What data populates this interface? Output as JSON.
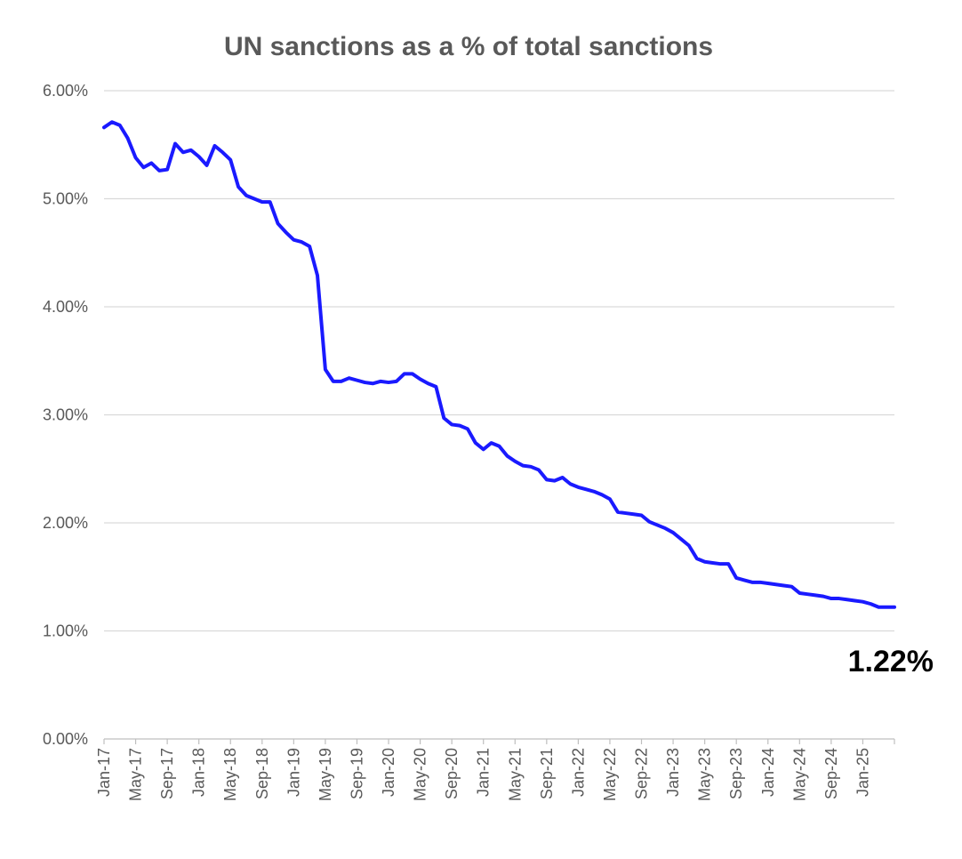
{
  "chart_data": {
    "type": "line",
    "title": "UN sanctions as a % of total sanctions",
    "xlabel": "",
    "ylabel": "",
    "ylim": [
      0,
      6
    ],
    "y_ticks": [
      {
        "value": 0,
        "label": "0.00%"
      },
      {
        "value": 1,
        "label": "1.00%"
      },
      {
        "value": 2,
        "label": "2.00%"
      },
      {
        "value": 3,
        "label": "3.00%"
      },
      {
        "value": 4,
        "label": "4.00%"
      },
      {
        "value": 5,
        "label": "5.00%"
      },
      {
        "value": 6,
        "label": "6.00%"
      }
    ],
    "x_ticks": [
      {
        "index": 0,
        "label": "Jan-17"
      },
      {
        "index": 4,
        "label": "May-17"
      },
      {
        "index": 8,
        "label": "Sep-17"
      },
      {
        "index": 12,
        "label": "Jan-18"
      },
      {
        "index": 16,
        "label": "May-18"
      },
      {
        "index": 20,
        "label": "Sep-18"
      },
      {
        "index": 24,
        "label": "Jan-19"
      },
      {
        "index": 28,
        "label": "May-19"
      },
      {
        "index": 32,
        "label": "Sep-19"
      },
      {
        "index": 36,
        "label": "Jan-20"
      },
      {
        "index": 40,
        "label": "May-20"
      },
      {
        "index": 44,
        "label": "Sep-20"
      },
      {
        "index": 48,
        "label": "Jan-21"
      },
      {
        "index": 52,
        "label": "May-21"
      },
      {
        "index": 56,
        "label": "Sep-21"
      },
      {
        "index": 60,
        "label": "Jan-22"
      },
      {
        "index": 64,
        "label": "May-22"
      },
      {
        "index": 68,
        "label": "Sep-22"
      },
      {
        "index": 72,
        "label": "Jan-23"
      },
      {
        "index": 76,
        "label": "May-23"
      },
      {
        "index": 80,
        "label": "Sep-23"
      },
      {
        "index": 84,
        "label": "Jan-24"
      },
      {
        "index": 88,
        "label": "May-24"
      },
      {
        "index": 92,
        "label": "Sep-24"
      },
      {
        "index": 96,
        "label": "Jan-25"
      }
    ],
    "num_points": 101,
    "grid": true,
    "series": [
      {
        "name": "UN sanctions as a % of total sanctions",
        "color": "#1a1aff",
        "values": [
          5.66,
          5.71,
          5.68,
          5.56,
          5.38,
          5.29,
          5.33,
          5.26,
          5.27,
          5.51,
          5.43,
          5.45,
          5.39,
          5.31,
          5.49,
          5.43,
          5.36,
          5.11,
          5.03,
          5.0,
          4.97,
          4.97,
          4.77,
          4.69,
          4.62,
          4.6,
          4.56,
          4.29,
          3.42,
          3.31,
          3.31,
          3.34,
          3.32,
          3.3,
          3.29,
          3.31,
          3.3,
          3.31,
          3.38,
          3.38,
          3.33,
          3.29,
          3.26,
          2.97,
          2.91,
          2.9,
          2.87,
          2.74,
          2.68,
          2.74,
          2.71,
          2.62,
          2.57,
          2.53,
          2.52,
          2.49,
          2.4,
          2.39,
          2.42,
          2.36,
          2.33,
          2.31,
          2.29,
          2.26,
          2.22,
          2.1,
          2.09,
          2.08,
          2.07,
          2.01,
          1.98,
          1.95,
          1.91,
          1.85,
          1.79,
          1.67,
          1.64,
          1.63,
          1.62,
          1.62,
          1.49,
          1.47,
          1.45,
          1.45,
          1.44,
          1.43,
          1.42,
          1.41,
          1.35,
          1.34,
          1.33,
          1.32,
          1.3,
          1.3,
          1.29,
          1.28,
          1.27,
          1.25,
          1.22,
          1.22,
          1.22
        ]
      }
    ],
    "annotations": [
      {
        "text": "1.22%",
        "anchor": "last-point",
        "placement": "below-right"
      }
    ]
  }
}
